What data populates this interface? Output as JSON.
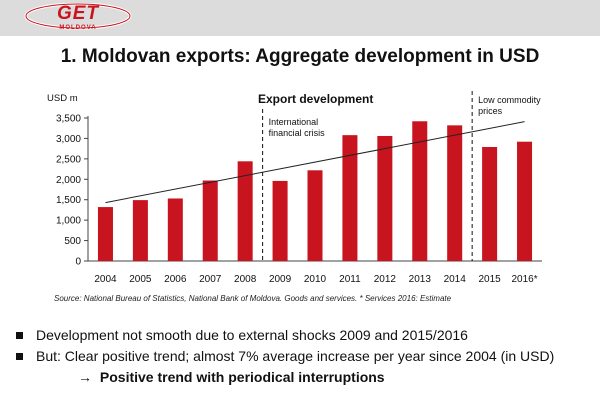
{
  "header": {
    "logo_text": "GET",
    "logo_subtext": "MOLDOVA",
    "logo_color": "#c8141e"
  },
  "slide": {
    "title": "1. Moldovan exports: Aggregate development in USD",
    "source": "Source:  National Bureau of Statistics, National Bank of Moldova. Goods and services. * Services 2016: Estimate"
  },
  "bullets": [
    "Development not smooth due to external shocks 2009 and 2015/2016",
    "But: Clear positive trend; almost 7% average increase per year since 2004 (in USD)"
  ],
  "conclusion": {
    "arrow": "→",
    "text": "Positive trend with periodical interruptions"
  },
  "chart_data": {
    "type": "bar",
    "title": "Export development",
    "ylabel": "USD m",
    "xlabel": "",
    "ylim": [
      0,
      3500
    ],
    "yticks": [
      0,
      500,
      1000,
      1500,
      2000,
      2500,
      3000,
      3500
    ],
    "ytick_labels": [
      "0",
      "500",
      "1,000",
      "1,500",
      "2,000",
      "2,500",
      "3,000",
      "3,500"
    ],
    "categories": [
      "2004",
      "2005",
      "2006",
      "2007",
      "2008",
      "2009",
      "2010",
      "2011",
      "2012",
      "2013",
      "2014",
      "2015",
      "2016*"
    ],
    "values": [
      1320,
      1490,
      1530,
      1970,
      2440,
      1960,
      2220,
      3080,
      3060,
      3420,
      3320,
      2790,
      2920
    ],
    "bar_color": "#c8141e",
    "grid": false,
    "legend": "none",
    "trendline": {
      "start_value": 1430,
      "end_value": 3410
    },
    "annotations": [
      {
        "text_lines": [
          "International",
          "financial crisis"
        ],
        "after_category": "2008"
      },
      {
        "text_lines": [
          "Low commodity",
          "prices"
        ],
        "after_category": "2014"
      }
    ]
  }
}
